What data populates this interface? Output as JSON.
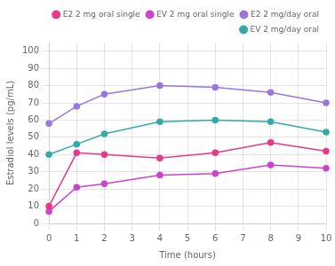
{
  "chart_data": {
    "type": "line",
    "x": [
      0,
      1,
      2,
      4,
      6,
      8,
      10
    ],
    "series": [
      {
        "name": "E2 2 mg oral single",
        "color": "#e8388a",
        "values": [
          10,
          41,
          40,
          38,
          41,
          47,
          42
        ]
      },
      {
        "name": "EV 2 mg oral single",
        "color": "#cc44cc",
        "values": [
          7,
          21,
          23,
          28,
          29,
          34,
          32
        ]
      },
      {
        "name": "E2 2 mg/day oral",
        "color": "#9977dd",
        "values": [
          58,
          68,
          75,
          80,
          79,
          76,
          70
        ]
      },
      {
        "name": "EV 2 mg/day oral",
        "color": "#33aaaa",
        "values": [
          40,
          46,
          52,
          59,
          60,
          59,
          53
        ]
      }
    ],
    "xlabel": "Time (hours)",
    "ylabel": "Estradiol levels (pg/mL)",
    "xlim": [
      0,
      10
    ],
    "ylim": [
      0,
      105
    ],
    "xticks": [
      0,
      1,
      2,
      3,
      4,
      5,
      6,
      7,
      8,
      9,
      10
    ],
    "yticks": [
      0,
      10,
      20,
      30,
      40,
      50,
      60,
      70,
      80,
      90,
      100
    ],
    "grid": true,
    "legend": "upper right",
    "marker": "circle"
  }
}
